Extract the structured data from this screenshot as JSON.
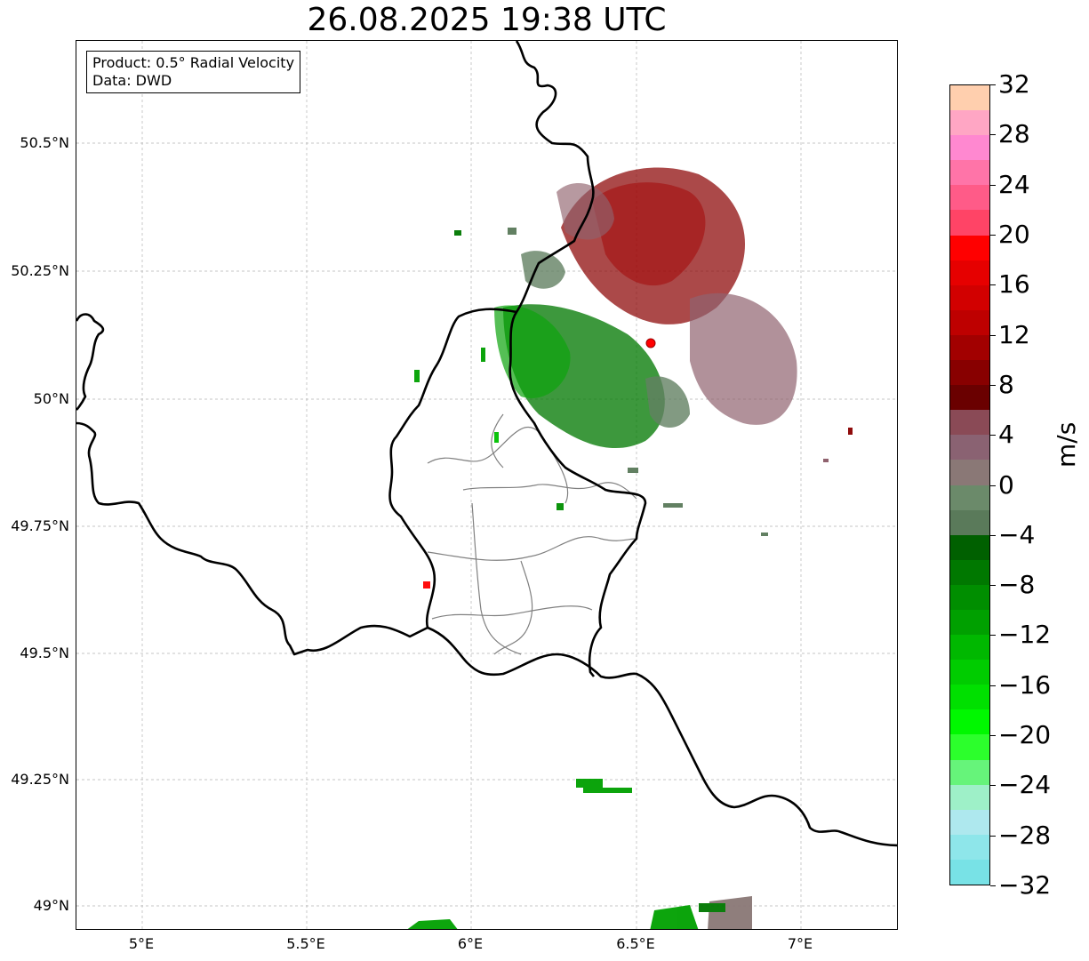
{
  "title": "26.08.2025 19:38 UTC",
  "info": {
    "product": "Product: 0.5° Radial Velocity",
    "data": "Data: DWD"
  },
  "lat_labels": [
    "50.5°N",
    "50.25°N",
    "50°N",
    "49.75°N",
    "49.5°N",
    "49.25°N",
    "49°N"
  ],
  "lon_labels": [
    "5°E",
    "5.5°E",
    "6°E",
    "6.5°E",
    "7°E"
  ],
  "colorbar": {
    "unit": "m/s",
    "range": [
      -32,
      32
    ],
    "ticks": [
      "32",
      "28",
      "24",
      "20",
      "16",
      "12",
      "8",
      "4",
      "0",
      "−4",
      "−8",
      "−12",
      "−16",
      "−20",
      "−24",
      "−28",
      "−32"
    ],
    "colors_top_to_bottom": [
      "#ffcfae",
      "#ffa6c4",
      "#ff88d0",
      "#ff74a8",
      "#ff5b88",
      "#ff4466",
      "#ff0000",
      "#e60000",
      "#d20000",
      "#be0000",
      "#a20000",
      "#880000",
      "#6a0000",
      "#8a4a56",
      "#8a6272",
      "#8a7876",
      "#6b8a6a",
      "#5a7a5a",
      "#006000",
      "#007800",
      "#008e00",
      "#00a000",
      "#00b800",
      "#00cc00",
      "#00e000",
      "#00f800",
      "#2cff2c",
      "#66f47a",
      "#9ef0c8",
      "#aee8ee",
      "#8ee6ea",
      "#78e2e6"
    ]
  },
  "radar_site": {
    "color": "#ff0000"
  }
}
